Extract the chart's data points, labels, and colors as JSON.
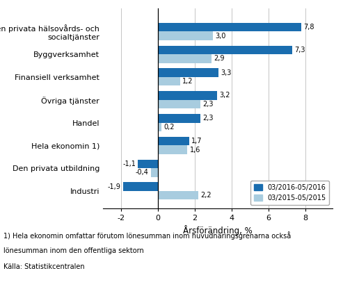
{
  "categories": [
    "Industri",
    "Den privata utbildning",
    "Hela ekonomin 1)",
    "Handel",
    "Övriga tjänster",
    "Finansiell verksamhet",
    "Byggverksamhet",
    "Den privata hälsovårds- och\nsocialtjänster"
  ],
  "series1": [
    -1.9,
    -1.1,
    1.7,
    2.3,
    3.2,
    3.3,
    7.3,
    7.8
  ],
  "series2": [
    2.2,
    -0.4,
    1.6,
    0.2,
    2.3,
    1.2,
    2.9,
    3.0
  ],
  "color1": "#1A6DAF",
  "color2": "#A8CCDF",
  "legend1": "03/2016-05/2016",
  "legend2": "03/2015-05/2015",
  "xlabel": "Årsförändring, %",
  "xlim": [
    -3.0,
    9.5
  ],
  "xticks": [
    -2,
    0,
    2,
    4,
    6,
    8
  ],
  "footnote1": "1) Hela ekonomin omfattar förutom lönesumman inom huvudnäringsgrenarna också",
  "footnote2": "lönesumman inom den offentliga sektorn",
  "footnote3": "Källa: Statistikcentralen",
  "bar_height": 0.38,
  "label_fontsize": 7.0,
  "tick_fontsize": 8.0,
  "xlabel_fontsize": 8.5,
  "footnote_fontsize": 7.0
}
